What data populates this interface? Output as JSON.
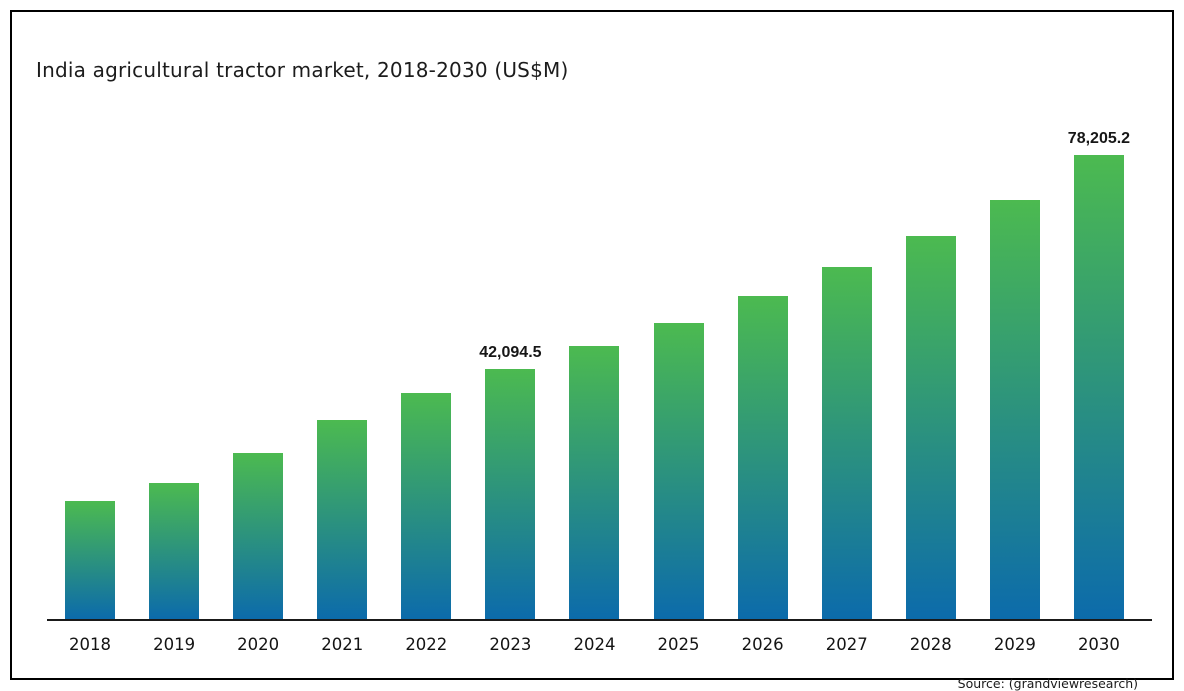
{
  "title": "India agricultural tractor market, 2018-2030 (US$M)",
  "source": "Source: (grandviewresearch)",
  "colors": {
    "bar_gradient_top": "#4cba50",
    "bar_gradient_bottom": "#0c6bab",
    "axis": "#1a1a1a",
    "frame_border": "#000000",
    "background": "#ffffff",
    "text": "#1c1c1c"
  },
  "chart_data": {
    "type": "bar",
    "title": "India agricultural tractor market, 2018-2030 (US$M)",
    "xlabel": "",
    "ylabel": "",
    "unit": "US$M",
    "categories": [
      "2018",
      "2019",
      "2020",
      "2021",
      "2022",
      "2023",
      "2024",
      "2025",
      "2026",
      "2027",
      "2028",
      "2029",
      "2030"
    ],
    "values": [
      19900,
      22900,
      28000,
      33500,
      38100,
      42094.5,
      46000,
      49900,
      54400,
      59300,
      64600,
      70600,
      78205.2
    ],
    "annotations": [
      {
        "category": "2023",
        "text": "42,094.5"
      },
      {
        "category": "2030",
        "text": "78,205.2"
      }
    ],
    "ylim": [
      0,
      80000
    ],
    "grid": false,
    "legend": false,
    "axis_labels_shown": "x-only",
    "bar_style": "vertical gradient green-to-blue"
  }
}
